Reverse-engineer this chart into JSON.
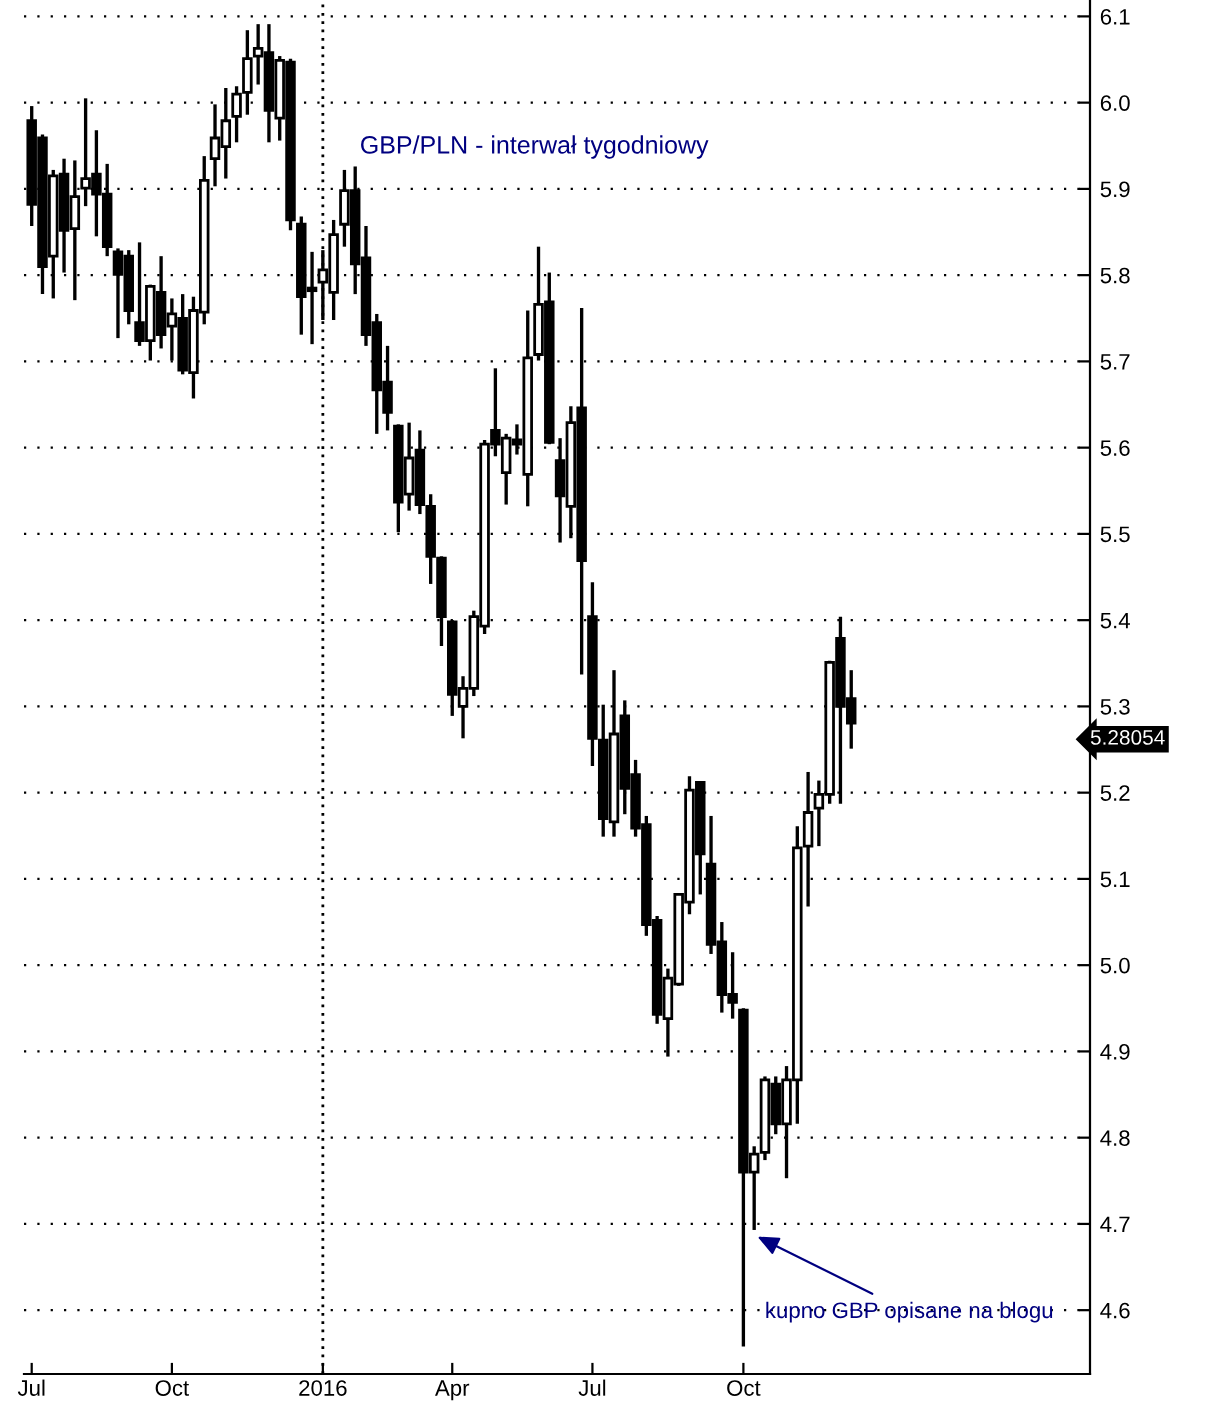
{
  "chart_data": {
    "type": "candlestick",
    "title": "GBP/PLN - interwał tygodniowy",
    "x": [
      "2015-07-03",
      "2015-07-10",
      "2015-07-17",
      "2015-07-24",
      "2015-07-31",
      "2015-08-07",
      "2015-08-14",
      "2015-08-21",
      "2015-08-28",
      "2015-09-04",
      "2015-09-11",
      "2015-09-18",
      "2015-09-25",
      "2015-10-02",
      "2015-10-09",
      "2015-10-16",
      "2015-10-23",
      "2015-10-30",
      "2015-11-06",
      "2015-11-13",
      "2015-11-20",
      "2015-11-27",
      "2015-12-04",
      "2015-12-11",
      "2015-12-18",
      "2015-12-25",
      "2016-01-01",
      "2016-01-08",
      "2016-01-15",
      "2016-01-22",
      "2016-01-29",
      "2016-02-05",
      "2016-02-12",
      "2016-02-19",
      "2016-02-26",
      "2016-03-04",
      "2016-03-11",
      "2016-03-18",
      "2016-03-25",
      "2016-04-01",
      "2016-04-08",
      "2016-04-15",
      "2016-04-22",
      "2016-04-29",
      "2016-05-06",
      "2016-05-13",
      "2016-05-20",
      "2016-05-27",
      "2016-06-03",
      "2016-06-10",
      "2016-06-17",
      "2016-06-24",
      "2016-07-01",
      "2016-07-08",
      "2016-07-15",
      "2016-07-22",
      "2016-07-29",
      "2016-08-05",
      "2016-08-12",
      "2016-08-19",
      "2016-08-26",
      "2016-09-02",
      "2016-09-09",
      "2016-09-16",
      "2016-09-23",
      "2016-09-30",
      "2016-10-07",
      "2016-10-14",
      "2016-10-21",
      "2016-10-28",
      "2016-11-04",
      "2016-11-11",
      "2016-11-18",
      "2016-11-25",
      "2016-12-02",
      "2016-12-09",
      "2016-12-16"
    ],
    "ohlc": [
      [
        5.979,
        5.996,
        5.857,
        5.882
      ],
      [
        5.959,
        5.963,
        5.778,
        5.81
      ],
      [
        5.822,
        5.922,
        5.773,
        5.915
      ],
      [
        5.917,
        5.935,
        5.803,
        5.852
      ],
      [
        5.854,
        5.933,
        5.771,
        5.891
      ],
      [
        5.901,
        6.005,
        5.88,
        5.912
      ],
      [
        5.917,
        5.968,
        5.845,
        5.894
      ],
      [
        5.894,
        5.929,
        5.822,
        5.833
      ],
      [
        5.827,
        5.831,
        5.727,
        5.801
      ],
      [
        5.822,
        5.829,
        5.743,
        5.759
      ],
      [
        5.745,
        5.838,
        5.718,
        5.724
      ],
      [
        5.724,
        5.789,
        5.701,
        5.787
      ],
      [
        5.78,
        5.822,
        5.715,
        5.731
      ],
      [
        5.741,
        5.773,
        5.701,
        5.755
      ],
      [
        5.75,
        5.778,
        5.685,
        5.69
      ],
      [
        5.687,
        5.775,
        5.657,
        5.759
      ],
      [
        5.757,
        5.938,
        5.743,
        5.91
      ],
      [
        5.935,
        5.998,
        5.903,
        5.959
      ],
      [
        5.949,
        6.017,
        5.912,
        5.979
      ],
      [
        5.984,
        6.019,
        5.954,
        6.01
      ],
      [
        6.012,
        6.084,
        5.986,
        6.051
      ],
      [
        6.054,
        6.091,
        6.021,
        6.063
      ],
      [
        6.058,
        6.091,
        5.954,
        5.991
      ],
      [
        5.982,
        6.054,
        5.956,
        6.049
      ],
      [
        6.047,
        6.051,
        5.852,
        5.864
      ],
      [
        5.859,
        5.868,
        5.731,
        5.775
      ],
      [
        5.782,
        5.827,
        5.72,
        5.785
      ],
      [
        5.792,
        5.829,
        5.748,
        5.806
      ],
      [
        5.78,
        5.864,
        5.748,
        5.847
      ],
      [
        5.859,
        5.922,
        5.833,
        5.898
      ],
      [
        5.898,
        5.926,
        5.778,
        5.813
      ],
      [
        5.82,
        5.857,
        5.718,
        5.731
      ],
      [
        5.745,
        5.755,
        5.616,
        5.667
      ],
      [
        5.676,
        5.718,
        5.62,
        5.641
      ],
      [
        5.625,
        5.627,
        5.502,
        5.537
      ],
      [
        5.546,
        5.629,
        5.527,
        5.588
      ],
      [
        5.597,
        5.62,
        5.523,
        5.534
      ],
      [
        5.532,
        5.546,
        5.442,
        5.474
      ],
      [
        5.472,
        5.474,
        5.37,
        5.404
      ],
      [
        5.398,
        5.4,
        5.289,
        5.314
      ],
      [
        5.3,
        5.335,
        5.263,
        5.321
      ],
      [
        5.321,
        5.411,
        5.312,
        5.404
      ],
      [
        5.393,
        5.609,
        5.384,
        5.604
      ],
      [
        5.62,
        5.692,
        5.59,
        5.604
      ],
      [
        5.571,
        5.616,
        5.534,
        5.611
      ],
      [
        5.609,
        5.627,
        5.592,
        5.604
      ],
      [
        5.569,
        5.759,
        5.532,
        5.704
      ],
      [
        5.708,
        5.833,
        5.701,
        5.766
      ],
      [
        5.769,
        5.803,
        5.604,
        5.606
      ],
      [
        5.585,
        5.611,
        5.49,
        5.544
      ],
      [
        5.532,
        5.648,
        5.495,
        5.629
      ],
      [
        5.646,
        5.762,
        5.337,
        5.469
      ],
      [
        5.404,
        5.444,
        5.231,
        5.263
      ],
      [
        5.261,
        5.302,
        5.149,
        5.17
      ],
      [
        5.166,
        5.342,
        5.149,
        5.268
      ],
      [
        5.289,
        5.307,
        5.175,
        5.205
      ],
      [
        5.221,
        5.238,
        5.149,
        5.159
      ],
      [
        5.163,
        5.173,
        5.034,
        5.047
      ],
      [
        5.052,
        5.057,
        4.932,
        4.943
      ],
      [
        4.938,
        4.996,
        4.894,
        4.985
      ],
      [
        4.978,
        5.082,
        4.976,
        5.082
      ],
      [
        5.073,
        5.219,
        5.059,
        5.203
      ],
      [
        5.212,
        5.212,
        5.082,
        5.129
      ],
      [
        5.117,
        5.173,
        5.013,
        5.024
      ],
      [
        5.027,
        5.05,
        4.945,
        4.966
      ],
      [
        4.966,
        5.015,
        4.938,
        4.957
      ],
      [
        4.948,
        4.95,
        4.558,
        4.76
      ],
      [
        4.76,
        4.79,
        4.693,
        4.781
      ],
      [
        4.783,
        4.871,
        4.774,
        4.867
      ],
      [
        4.862,
        4.871,
        4.804,
        4.816
      ],
      [
        4.816,
        4.883,
        4.753,
        4.867
      ],
      [
        4.867,
        5.161,
        4.816,
        5.136
      ],
      [
        5.138,
        5.224,
        5.068,
        5.177
      ],
      [
        5.182,
        5.214,
        5.138,
        5.198
      ],
      [
        5.198,
        5.353,
        5.187,
        5.351
      ],
      [
        5.379,
        5.404,
        5.187,
        5.3
      ],
      [
        5.309,
        5.342,
        5.251,
        5.28054
      ]
    ],
    "xlim": [
      "2015-06-28",
      "2017-05-20"
    ],
    "xticks": [
      {
        "value": "2015-07-03",
        "label": "Jul"
      },
      {
        "value": "2015-10-02",
        "label": "Oct"
      },
      {
        "value": "2016-01-08",
        "label": "2016"
      },
      {
        "value": "2016-04-01",
        "label": "Apr"
      },
      {
        "value": "2016-07-01",
        "label": "Jul"
      },
      {
        "value": "2016-10-07",
        "label": "Oct"
      }
    ],
    "ylim": [
      4.526,
      6.119
    ],
    "yticks": [
      4.6,
      4.7,
      4.8,
      4.9,
      {
        "value": 5,
        "label": "5.0"
      },
      5.1,
      5.2,
      5.3,
      5.4,
      5.5,
      5.6,
      5.7,
      5.8,
      5.9,
      {
        "value": 6,
        "label": "6.0"
      },
      6.1
    ],
    "grid": "y",
    "ref_lines": [
      {
        "axis": "x",
        "value": "2016-01-08",
        "line_style": "dotted",
        "color": "#000000"
      }
    ],
    "annotations": [
      "5.28054",
      "kupno GBP opisane na blogu"
    ]
  }
}
